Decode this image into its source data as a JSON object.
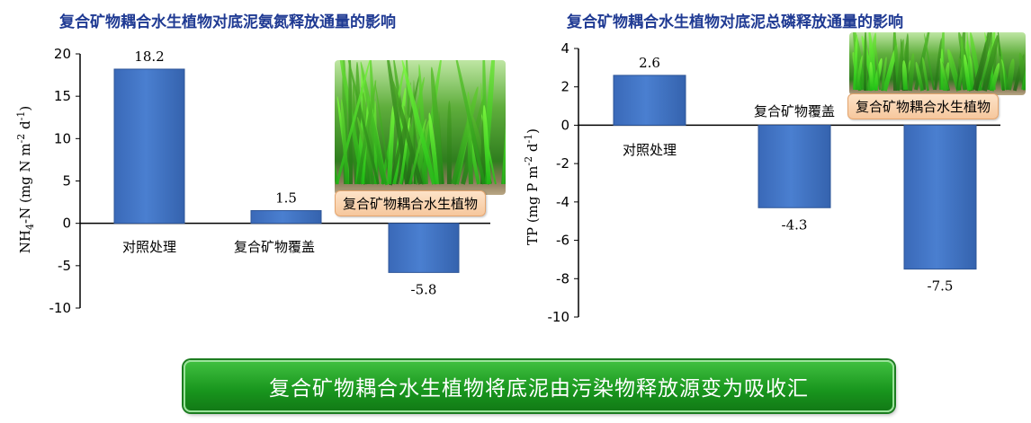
{
  "chart_data": [
    {
      "type": "bar",
      "title": "复合矿物耦合水生植物对底泥氨氮释放通量的影响",
      "ylabel_parts": [
        "NH",
        "4",
        "-N (mg N m",
        "-2",
        " d",
        "-1",
        ")"
      ],
      "categories": [
        "对照处理",
        "复合矿物覆盖",
        "复合矿物耦合水生植物"
      ],
      "values": [
        18.2,
        1.5,
        -5.8
      ],
      "value_labels": [
        "18.2",
        "1.5",
        "-5.8"
      ],
      "yticks": [
        "20",
        "15",
        "10",
        "5",
        "0",
        "-5",
        "-10"
      ],
      "ylim": [
        -10,
        20
      ],
      "bar_color": "#4a7fd0",
      "grid": false,
      "photo_label": "复合矿物耦合水生植物"
    },
    {
      "type": "bar",
      "title": "复合矿物耦合水生植物对底泥总磷释放通量的影响",
      "ylabel_parts": [
        "TP (mg P m",
        "-2",
        " d",
        "-1",
        ")"
      ],
      "categories": [
        "对照处理",
        "复合矿物覆盖",
        "复合矿物耦合水生植物"
      ],
      "values": [
        2.6,
        -4.3,
        -7.5
      ],
      "value_labels": [
        "2.6",
        "-4.3",
        "-7.5"
      ],
      "yticks": [
        "4",
        "2",
        "0",
        "-2",
        "-4",
        "-6",
        "-8",
        "-10"
      ],
      "ylim": [
        -10,
        4
      ],
      "bar_color": "#4a7fd0",
      "grid": false,
      "photo_label": "复合矿物耦合水生植物"
    }
  ],
  "banner": {
    "text": "复合矿物耦合水生植物将底泥由污染物释放源变为吸收汇",
    "color": "#1a9a1f"
  }
}
